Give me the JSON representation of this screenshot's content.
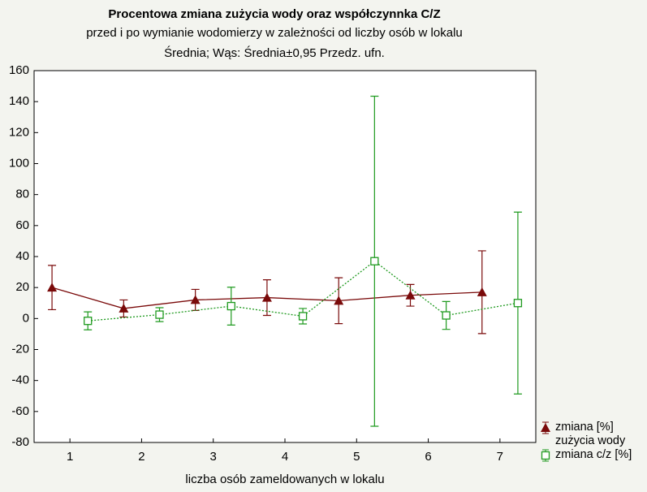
{
  "chart_data": {
    "type": "errorbar_line",
    "title": "Procentowa zmiana zużycia wody oraz współczynnka C/Z",
    "subtitle": "przed i po wymianie wodomierzy w zależności od liczby osób w lokalu",
    "annotation": "Średnia; Wąs: Średnia±0,95 Przedz. ufn.",
    "x_label": "liczba osób zameldowanych w lokalu",
    "xlim": [
      0.5,
      7.5
    ],
    "xticks": [
      1,
      2,
      3,
      4,
      5,
      6,
      7
    ],
    "ylim": [
      -80,
      160
    ],
    "yticks": [
      -80,
      -60,
      -40,
      -20,
      0,
      20,
      40,
      60,
      80,
      100,
      120,
      140,
      160
    ],
    "series": [
      {
        "name": "zmiana [%] zużycia wody",
        "color": "#7a0a0a",
        "line": "solid",
        "marker": "triangle",
        "x": [
          0.75,
          1.75,
          2.75,
          3.75,
          4.75,
          5.75,
          6.75
        ],
        "values": [
          20,
          6.5,
          12,
          13.5,
          11.5,
          15,
          17
        ],
        "errors": [
          14.3,
          5.5,
          6.8,
          11.5,
          14.8,
          7,
          26.7
        ]
      },
      {
        "name": "zmiana c/z [%]",
        "color": "#1f9a1f",
        "line": "dotted",
        "marker": "square",
        "x": [
          1.25,
          2.25,
          3.25,
          4.25,
          5.25,
          6.25,
          7.25
        ],
        "values": [
          -1.5,
          2.5,
          8,
          1.5,
          37,
          2,
          10
        ],
        "errors": [
          5.8,
          4.5,
          12.2,
          5,
          106.5,
          9,
          58.7
        ]
      }
    ]
  }
}
